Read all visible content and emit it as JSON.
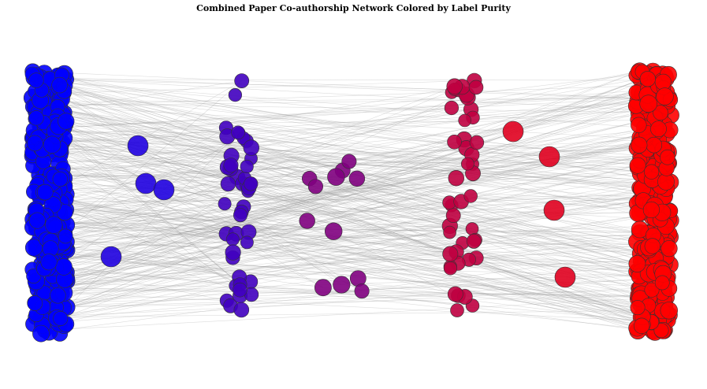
{
  "title": "Combined Paper Co-authorship Network Colored by Label Purity",
  "chart_data": {
    "type": "network",
    "title": "Combined Paper Co-authorship Network Colored by Label Purity",
    "color_scale": {
      "low": "#0000ff",
      "high": "#ff0000"
    },
    "edge_color": "#9a9a9a",
    "node_outline": "#333333",
    "clusters": [
      {
        "purity": 0.0,
        "nodes": 320,
        "shape": "dense-column"
      },
      {
        "purity": 0.25,
        "nodes": 45,
        "shape": "column"
      },
      {
        "purity": 0.5,
        "nodes": 12,
        "shape": "scattered"
      },
      {
        "purity": 0.75,
        "nodes": 45,
        "shape": "column"
      },
      {
        "purity": 1.0,
        "nodes": 340,
        "shape": "dense-column"
      }
    ],
    "isolated_nodes": [
      {
        "purity": 0.12,
        "size": "large"
      },
      {
        "purity": 0.12,
        "size": "large"
      },
      {
        "purity": 0.12,
        "size": "large"
      },
      {
        "purity": 0.12,
        "size": "large"
      },
      {
        "purity": 0.88,
        "size": "large"
      },
      {
        "purity": 0.88,
        "size": "large"
      },
      {
        "purity": 0.88,
        "size": "large"
      },
      {
        "purity": 0.88,
        "size": "large"
      }
    ]
  }
}
